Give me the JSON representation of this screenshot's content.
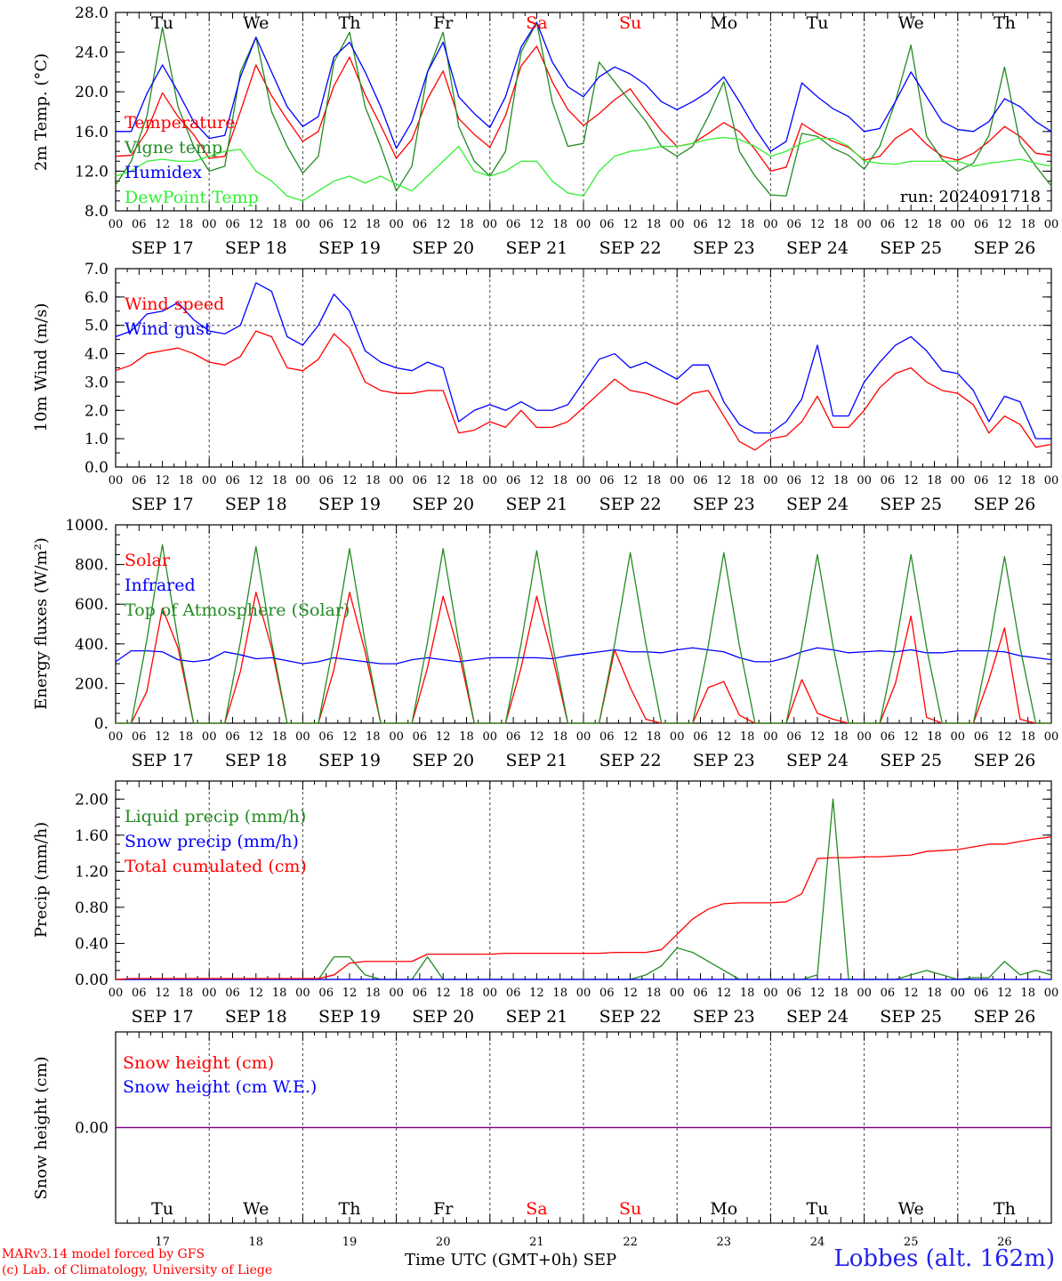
{
  "station": "Lobbes (alt. 162m)",
  "credits": [
    "MARv3.14 model forced by GFS",
    "(c) Lab. of Climatology, University of Liege"
  ],
  "x_title": "Time UTC (GMT+0h) SEP",
  "run_label": "run: 2024091718",
  "colors": {
    "red": "#ff0000",
    "green": "#228b22",
    "blue": "#0000ff",
    "lightgreen": "#33ee33",
    "purple": "#800080"
  },
  "time_axis": {
    "hour_ticks": [
      "00",
      "06",
      "12",
      "18"
    ],
    "dates": [
      "SEP 17",
      "SEP 18",
      "SEP 19",
      "SEP 20",
      "SEP 21",
      "SEP 22",
      "SEP 23",
      "SEP 24",
      "SEP 25",
      "SEP 26"
    ],
    "weekdays": [
      "Tu",
      "We",
      "Th",
      "Fr",
      "Sa",
      "Su",
      "Mo",
      "Tu",
      "We",
      "Th"
    ],
    "weekday_colors": [
      "#000000",
      "#000000",
      "#000000",
      "#000000",
      "#ff0000",
      "#ff0000",
      "#000000",
      "#000000",
      "#000000",
      "#000000"
    ],
    "day_numbers": [
      "17",
      "18",
      "19",
      "20",
      "21",
      "22",
      "23",
      "24",
      "25",
      "26"
    ]
  },
  "chart_data": [
    {
      "type": "line",
      "ylabel": "2m Temp. (°C)",
      "ylim": [
        8,
        28
      ],
      "yticks": [
        "8.0",
        "12.0",
        "16.0",
        "20.0",
        "24.0",
        "28.0"
      ],
      "x_unit": "hours since SEP 17 00 UTC (3-hourly)",
      "series": [
        {
          "name": "Temperature",
          "color": "#ff0000",
          "values": [
            13.5,
            13.6,
            16,
            19.9,
            17.5,
            15.7,
            13.3,
            13.5,
            18,
            22.7,
            19.6,
            17.2,
            15,
            16,
            20.6,
            23.5,
            19.7,
            16.6,
            13.3,
            15.2,
            19.3,
            22.1,
            17.3,
            15.7,
            14.4,
            17.6,
            22.6,
            24.6,
            21,
            18.2,
            16.6,
            17.8,
            19.2,
            20.3,
            18.1,
            16.1,
            14.5,
            14.8,
            15.8,
            16.9,
            16,
            14.2,
            12,
            12.4,
            16.8,
            15.8,
            15,
            14.4,
            13.1,
            13.5,
            15.3,
            16.3,
            14.7,
            13.5,
            13.1,
            13.8,
            15,
            16.5,
            15.5,
            13.8,
            13.6
          ]
        },
        {
          "name": "Vigne temp",
          "color": "#228b22",
          "values": [
            10.6,
            13,
            17.5,
            26.5,
            18.5,
            14.5,
            12,
            12.5,
            22,
            25.5,
            18,
            14.5,
            11.8,
            13.5,
            23,
            26,
            18.5,
            14.5,
            10,
            12.5,
            22,
            26,
            16.5,
            13,
            11.5,
            14,
            24,
            27,
            19,
            14.5,
            14.8,
            23,
            21,
            19,
            17,
            14.5,
            13.5,
            14.5,
            17.5,
            21,
            14,
            11.5,
            9.6,
            9.5,
            15.8,
            15.5,
            14.3,
            13.6,
            12.2,
            14.5,
            19,
            24.7,
            15.5,
            13.2,
            12,
            12.8,
            15.6,
            22.5,
            14.8,
            12.5,
            10.5
          ]
        },
        {
          "name": "Humidex",
          "color": "#0000ff",
          "values": [
            16,
            16,
            19.8,
            22.7,
            20,
            17,
            15.3,
            15.6,
            21.5,
            25.5,
            22,
            18.5,
            16.5,
            17.5,
            23.5,
            25,
            22,
            18.5,
            14.3,
            17,
            22,
            25,
            19.5,
            17.8,
            16.4,
            19.5,
            24.5,
            27,
            23,
            20.5,
            19.5,
            21.5,
            22.5,
            21.8,
            20.7,
            19,
            18.2,
            19,
            20,
            21.5,
            19,
            16.3,
            14,
            15,
            20.9,
            19.5,
            18.3,
            17.5,
            16,
            16.3,
            19,
            22,
            19.5,
            17,
            16.2,
            16,
            17,
            19.3,
            18.5,
            17,
            16
          ]
        },
        {
          "name": "DewPoint Temp",
          "color": "#33ee33",
          "values": [
            11.5,
            12,
            13,
            13.2,
            13,
            13,
            13.5,
            14,
            14.2,
            12,
            11,
            9.5,
            9,
            10,
            11,
            11.5,
            10.8,
            11.5,
            10.7,
            10,
            11.5,
            13,
            14.5,
            12,
            11.5,
            12,
            13,
            13,
            11,
            9.8,
            9.5,
            12,
            13.5,
            14,
            14.2,
            14.5,
            14.5,
            14.8,
            15.2,
            15.4,
            15.2,
            14.5,
            13.5,
            14,
            14.8,
            15.3,
            15.3,
            14.5,
            13,
            12.8,
            12.7,
            13,
            13,
            13,
            13,
            12.5,
            12.8,
            13,
            13.2,
            12.8,
            12.5
          ]
        }
      ]
    },
    {
      "type": "line",
      "ylabel": "10m Wind (m/s)",
      "ylim": [
        0,
        7
      ],
      "yticks": [
        "0.0",
        "1.0",
        "2.0",
        "3.0",
        "4.0",
        "5.0",
        "6.0",
        "7.0"
      ],
      "reference_line": 5,
      "x_unit": "hours since SEP 17 00 UTC (3-hourly)",
      "series": [
        {
          "name": "Wind speed",
          "color": "#ff0000",
          "values": [
            3.4,
            3.6,
            4,
            4.1,
            4.2,
            4,
            3.7,
            3.6,
            3.9,
            4.8,
            4.6,
            3.5,
            3.4,
            3.8,
            4.7,
            4.2,
            3,
            2.7,
            2.6,
            2.6,
            2.7,
            2.7,
            1.2,
            1.3,
            1.6,
            1.4,
            2,
            1.4,
            1.4,
            1.6,
            2.1,
            2.6,
            3.1,
            2.7,
            2.6,
            2.4,
            2.2,
            2.6,
            2.7,
            1.8,
            0.9,
            0.6,
            1,
            1.1,
            1.6,
            2.5,
            1.4,
            1.4,
            2,
            2.8,
            3.3,
            3.5,
            3,
            2.7,
            2.6,
            2.2,
            1.2,
            1.8,
            1.5,
            0.7,
            0.8
          ]
        },
        {
          "name": "Wind gust",
          "color": "#0000ff",
          "values": [
            4.6,
            4.8,
            5.4,
            5.5,
            5.8,
            5.2,
            4.8,
            4.7,
            5,
            6.5,
            6.2,
            4.6,
            4.3,
            5,
            6.1,
            5.5,
            4.1,
            3.7,
            3.5,
            3.4,
            3.7,
            3.5,
            1.6,
            2,
            2.2,
            2,
            2.3,
            2,
            2,
            2.2,
            3,
            3.8,
            4,
            3.5,
            3.7,
            3.4,
            3.1,
            3.6,
            3.6,
            2.3,
            1.5,
            1.2,
            1.2,
            1.6,
            2.4,
            4.3,
            1.8,
            1.8,
            3,
            3.7,
            4.3,
            4.6,
            4.1,
            3.4,
            3.3,
            2.7,
            1.6,
            2.5,
            2.3,
            1,
            1
          ]
        }
      ]
    },
    {
      "type": "line",
      "ylabel": "Energy fluxes (W/m²)",
      "ylim": [
        0,
        1000
      ],
      "yticks": [
        "0.",
        "200.",
        "400.",
        "600.",
        "800.",
        "1000."
      ],
      "x_unit": "hours since SEP 17 00 UTC (3-hourly)",
      "series": [
        {
          "name": "Solar",
          "color": "#ff0000",
          "values": [
            0,
            0,
            160,
            580,
            380,
            0,
            0,
            0,
            260,
            660,
            380,
            0,
            0,
            0,
            270,
            660,
            360,
            0,
            0,
            0,
            280,
            640,
            360,
            0,
            0,
            0,
            280,
            640,
            340,
            0,
            0,
            0,
            370,
            180,
            20,
            0,
            0,
            0,
            180,
            210,
            40,
            0,
            0,
            0,
            220,
            50,
            20,
            0,
            0,
            0,
            200,
            540,
            30,
            0,
            0,
            0,
            220,
            480,
            20,
            0,
            0
          ]
        },
        {
          "name": "Infrared",
          "color": "#0000ff",
          "values": [
            310,
            365,
            365,
            360,
            320,
            310,
            320,
            360,
            345,
            325,
            330,
            315,
            300,
            310,
            330,
            320,
            310,
            300,
            300,
            320,
            330,
            320,
            310,
            320,
            330,
            330,
            330,
            330,
            325,
            340,
            350,
            360,
            370,
            360,
            360,
            355,
            370,
            380,
            370,
            360,
            330,
            310,
            310,
            330,
            360,
            380,
            370,
            355,
            360,
            365,
            360,
            370,
            355,
            355,
            365,
            365,
            365,
            360,
            340,
            330,
            320
          ]
        },
        {
          "name": "Top of Atmosphere (Solar)",
          "color": "#228b22",
          "values": [
            0,
            0,
            420,
            900,
            420,
            0,
            0,
            0,
            410,
            890,
            410,
            0,
            0,
            0,
            410,
            880,
            410,
            0,
            0,
            0,
            410,
            880,
            410,
            0,
            0,
            0,
            400,
            870,
            400,
            0,
            0,
            0,
            400,
            860,
            400,
            0,
            0,
            0,
            390,
            860,
            390,
            0,
            0,
            0,
            390,
            850,
            390,
            0,
            0,
            0,
            380,
            850,
            380,
            0,
            0,
            0,
            380,
            840,
            380,
            0,
            0
          ]
        }
      ]
    },
    {
      "type": "line",
      "ylabel": "Precip (mm/h)",
      "ylim": [
        0,
        2.2
      ],
      "yticks": [
        "0.00",
        "0.40",
        "0.80",
        "1.20",
        "1.60",
        "2.00"
      ],
      "x_unit": "hours since SEP 17 00 UTC (3-hourly)",
      "series": [
        {
          "name": "Liquid precip (mm/h)",
          "color": "#228b22",
          "values": [
            0,
            0,
            0,
            0,
            0,
            0,
            0,
            0,
            0,
            0,
            0,
            0,
            0,
            0,
            0.25,
            0.25,
            0.05,
            0,
            0,
            0,
            0.25,
            0,
            0,
            0,
            0,
            0,
            0,
            0,
            0,
            0,
            0,
            0,
            0,
            0,
            0.05,
            0.15,
            0.35,
            0.3,
            0.2,
            0.1,
            0,
            0,
            0,
            0,
            0,
            0.05,
            2,
            0,
            0,
            0,
            0,
            0.05,
            0.1,
            0.05,
            0,
            0.02,
            0.02,
            0.2,
            0.05,
            0.1,
            0.05
          ]
        },
        {
          "name": "Snow precip (mm/h)",
          "color": "#0000ff",
          "values": [
            0,
            0,
            0,
            0,
            0,
            0,
            0,
            0,
            0,
            0,
            0,
            0,
            0,
            0,
            0,
            0,
            0,
            0,
            0,
            0,
            0,
            0,
            0,
            0,
            0,
            0,
            0,
            0,
            0,
            0,
            0,
            0,
            0,
            0,
            0,
            0,
            0,
            0,
            0,
            0,
            0,
            0,
            0,
            0,
            0,
            0,
            0,
            0,
            0,
            0,
            0,
            0,
            0,
            0,
            0,
            0,
            0,
            0,
            0,
            0,
            0
          ]
        },
        {
          "name": "Total cumulated (cm)",
          "color": "#ff0000",
          "values": [
            0,
            0.01,
            0.01,
            0.01,
            0.01,
            0.01,
            0.01,
            0.01,
            0.01,
            0.01,
            0.01,
            0.01,
            0.01,
            0.01,
            0.05,
            0.18,
            0.2,
            0.2,
            0.2,
            0.2,
            0.28,
            0.28,
            0.28,
            0.28,
            0.28,
            0.29,
            0.29,
            0.29,
            0.29,
            0.29,
            0.29,
            0.29,
            0.3,
            0.3,
            0.3,
            0.33,
            0.5,
            0.67,
            0.78,
            0.84,
            0.85,
            0.85,
            0.85,
            0.86,
            0.95,
            1.34,
            1.35,
            1.35,
            1.36,
            1.36,
            1.37,
            1.38,
            1.42,
            1.43,
            1.44,
            1.47,
            1.5,
            1.5,
            1.53,
            1.56,
            1.58
          ]
        }
      ]
    },
    {
      "type": "line",
      "ylabel": "Snow height (cm)",
      "ylim": [
        -1,
        1
      ],
      "yticks": [
        "0.00"
      ],
      "x_unit": "hours since SEP 17 00 UTC (3-hourly)",
      "series": [
        {
          "name": "Snow height (cm)",
          "color": "#ff0000",
          "values": [
            0,
            0,
            0,
            0,
            0,
            0,
            0,
            0,
            0,
            0,
            0,
            0,
            0,
            0,
            0,
            0,
            0,
            0,
            0,
            0,
            0,
            0,
            0,
            0,
            0,
            0,
            0,
            0,
            0,
            0,
            0,
            0,
            0,
            0,
            0,
            0,
            0,
            0,
            0,
            0,
            0,
            0,
            0,
            0,
            0,
            0,
            0,
            0,
            0,
            0,
            0,
            0,
            0,
            0,
            0,
            0,
            0,
            0,
            0,
            0,
            0
          ]
        },
        {
          "name": "Snow height (cm W.E.)",
          "color": "#0000ff",
          "values": [
            0,
            0,
            0,
            0,
            0,
            0,
            0,
            0,
            0,
            0,
            0,
            0,
            0,
            0,
            0,
            0,
            0,
            0,
            0,
            0,
            0,
            0,
            0,
            0,
            0,
            0,
            0,
            0,
            0,
            0,
            0,
            0,
            0,
            0,
            0,
            0,
            0,
            0,
            0,
            0,
            0,
            0,
            0,
            0,
            0,
            0,
            0,
            0,
            0,
            0,
            0,
            0,
            0,
            0,
            0,
            0,
            0,
            0,
            0,
            0,
            0
          ]
        }
      ]
    }
  ]
}
